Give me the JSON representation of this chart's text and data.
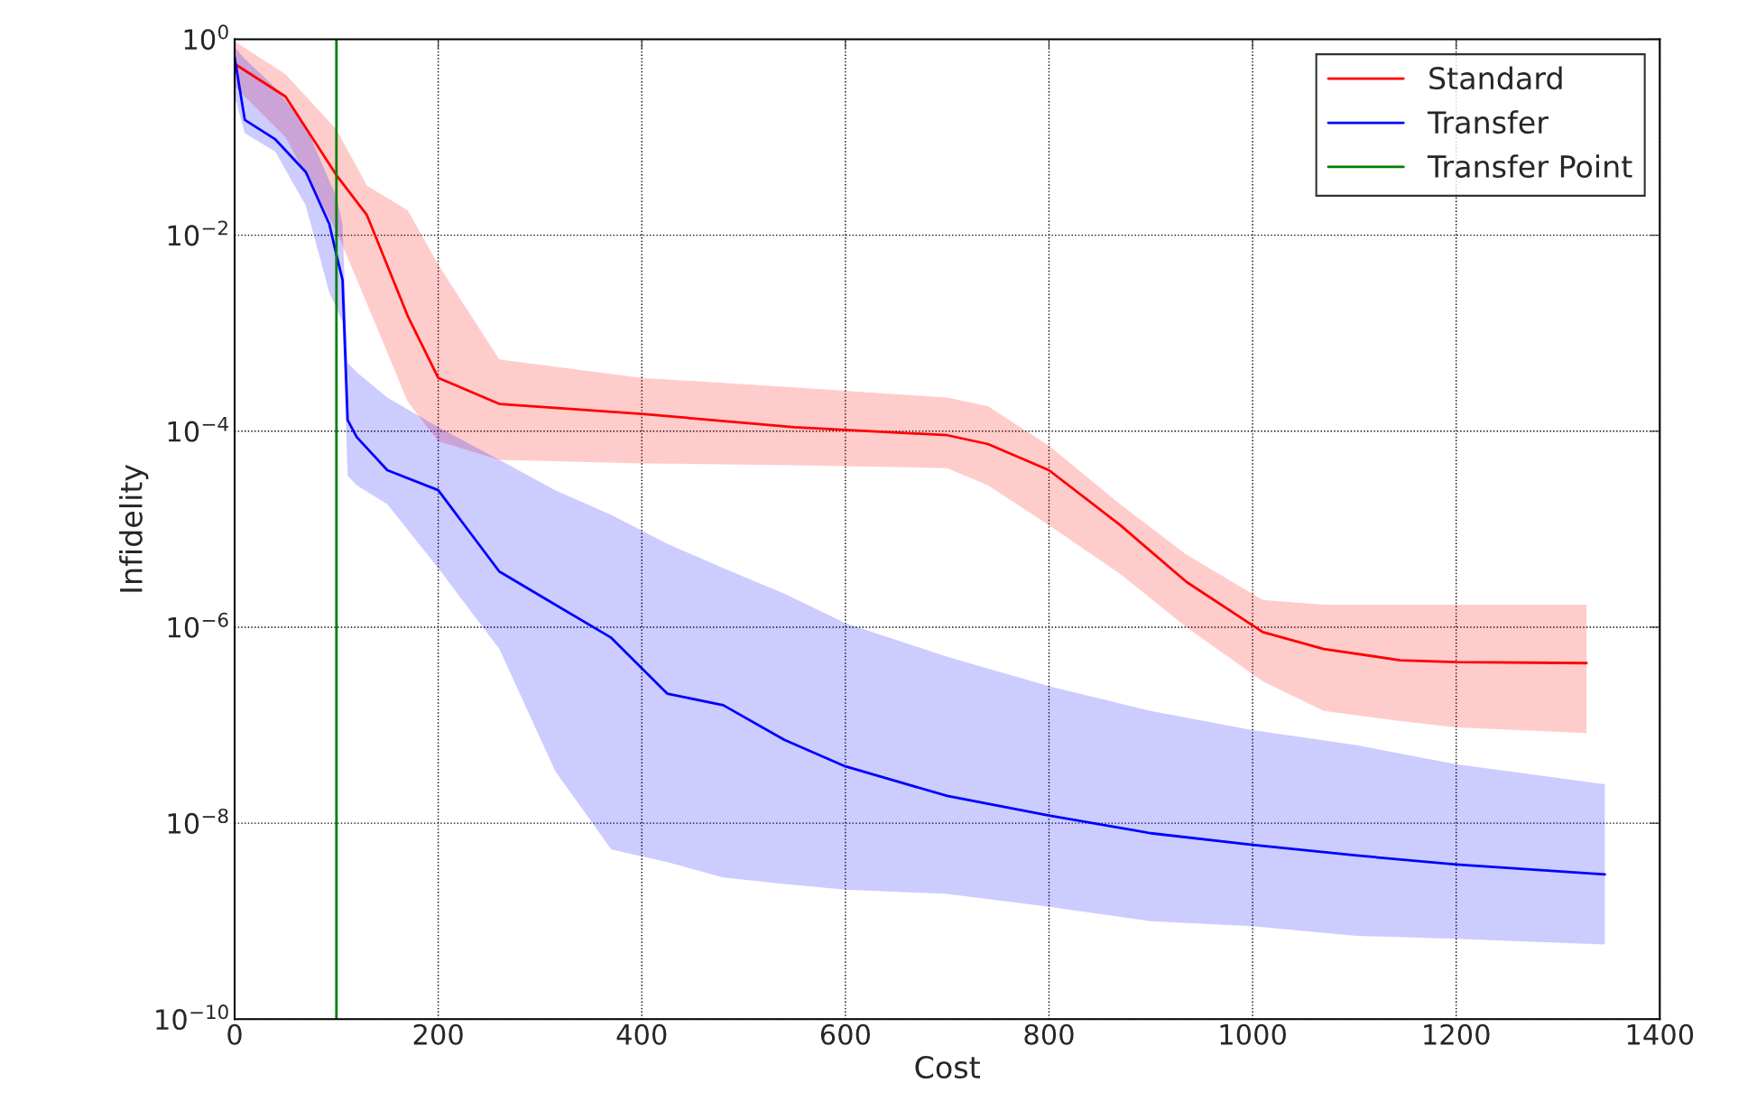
{
  "chart_data": {
    "type": "line",
    "xlabel": "Cost",
    "ylabel": "Infidelity",
    "log": "y",
    "grid": true,
    "legend": "top right",
    "line_style": "solid",
    "xlim": [
      0,
      1400
    ],
    "xticks": [
      0,
      200,
      400,
      600,
      800,
      1000,
      1200,
      1400
    ],
    "ylim": [
      1e-10,
      1
    ],
    "yticks": [
      {
        "value": 1e-10,
        "label": "10$^{−10}$"
      },
      {
        "value": 1e-08,
        "label": "10$^{−8}$"
      },
      {
        "value": 1e-06,
        "label": "10$^{−6}$"
      },
      {
        "value": 0.0001,
        "label": "10$^{−4}$"
      },
      {
        "value": 0.01,
        "label": "10$^{−2}$"
      },
      {
        "value": 1,
        "label": "10$^{0}$"
      }
    ],
    "series": [
      {
        "name": "Standard",
        "color": "#ff0000",
        "x": [
          0,
          50,
          100,
          130,
          170,
          200,
          260,
          400,
          550,
          700,
          740,
          800,
          870,
          935,
          1010,
          1070,
          1145,
          1200,
          1328
        ],
        "values": [
          0.56,
          0.26,
          0.041,
          0.016,
          0.0015,
          0.00035,
          0.00019,
          0.00015,
          0.00011,
          9.1e-05,
          7.4e-05,
          4e-05,
          1.1e-05,
          2.9e-06,
          8.9e-07,
          6e-07,
          4.6e-07,
          4.4e-07,
          4.3e-07
        ],
        "upper": [
          0.95,
          0.44,
          0.12,
          0.032,
          0.018,
          0.005,
          0.00054,
          0.00035,
          0.00028,
          0.00022,
          0.00018,
          7.1e-05,
          1.8e-05,
          5.5e-06,
          1.9e-06,
          1.7e-06,
          1.7e-06,
          1.7e-06,
          1.7e-06
        ],
        "lower": [
          0.33,
          0.1,
          0.011,
          0.002,
          0.0002,
          7.9e-05,
          5.1e-05,
          4.7e-05,
          4.5e-05,
          4.2e-05,
          2.8e-05,
          1.1e-05,
          3.5e-06,
          1e-06,
          2.8e-07,
          1.4e-07,
          1.1e-07,
          9.5e-08,
          8.3e-08
        ]
      },
      {
        "name": "Transfer",
        "color": "#0000ff",
        "x": [
          0,
          10,
          40,
          70,
          93,
          100,
          106,
          111,
          120,
          150,
          200,
          260,
          315,
          370,
          425,
          480,
          540,
          600,
          700,
          800,
          900,
          1000,
          1100,
          1200,
          1346
        ],
        "values": [
          0.65,
          0.15,
          0.095,
          0.044,
          0.013,
          0.0063,
          0.0035,
          0.00013,
          8.7e-05,
          4e-05,
          2.5e-05,
          3.7e-06,
          1.7e-06,
          7.8e-07,
          2.1e-07,
          1.6e-07,
          7.1e-08,
          3.8e-08,
          1.9e-08,
          1.2e-08,
          7.9e-09,
          6e-09,
          4.7e-09,
          3.8e-09,
          3e-09
        ],
        "upper": [
          0.83,
          0.63,
          0.32,
          0.13,
          0.036,
          0.025,
          0.013,
          0.0005,
          0.0004,
          0.00022,
          0.00011,
          5.1e-05,
          2.5e-05,
          1.4e-05,
          7.1e-06,
          4e-06,
          2.2e-06,
          1.1e-06,
          5e-07,
          2.5e-07,
          1.4e-07,
          8.9e-08,
          6.3e-08,
          4e-08,
          2.5e-08
        ],
        "lower": [
          0.26,
          0.11,
          0.071,
          0.02,
          0.0026,
          0.0018,
          0.0013,
          3.5e-05,
          2.8e-05,
          1.8e-05,
          4e-06,
          6e-07,
          3.4e-08,
          5.4e-09,
          4e-09,
          2.8e-09,
          2.4e-09,
          2.1e-09,
          1.9e-09,
          1.4e-09,
          1e-09,
          8.9e-10,
          7.1e-10,
          6.6e-10,
          5.8e-10
        ]
      },
      {
        "name": "Transfer Point",
        "color": "#008000",
        "x": [
          100,
          100
        ],
        "values": [
          1e-10,
          1
        ]
      }
    ]
  }
}
